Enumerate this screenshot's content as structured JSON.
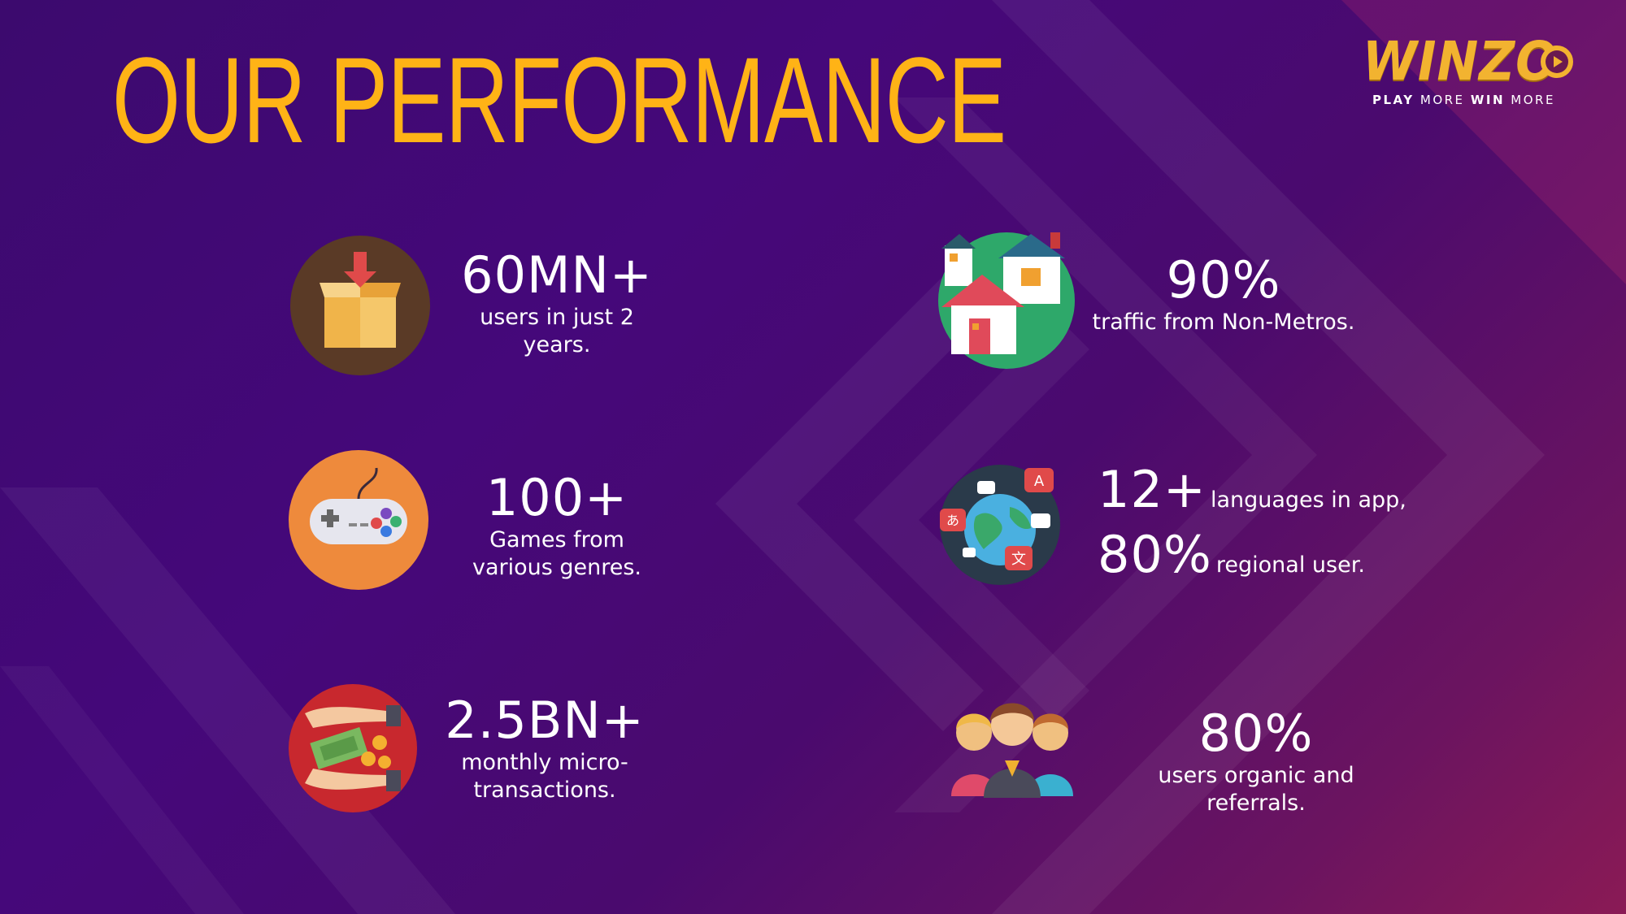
{
  "title": "OUR PERFORMANCE",
  "logo": {
    "name": "WINZO",
    "tagline_parts": [
      "PLAY",
      "MORE",
      "WIN",
      "MORE"
    ]
  },
  "colors": {
    "title": "#ffb316",
    "background": "#45087a",
    "accent": "#f2b330"
  },
  "stats": [
    {
      "value": "60MN+",
      "description": "users in just 2 years.",
      "icon": "download-box-icon"
    },
    {
      "value": "100+",
      "description": "Games from various genres.",
      "icon": "game-controller-icon"
    },
    {
      "value": "2.5BN+",
      "description": "monthly micro-transactions.",
      "icon": "money-hands-icon"
    },
    {
      "value": "90%",
      "description": "traffic from Non-Metros.",
      "icon": "houses-icon"
    },
    {
      "value_a": "12+",
      "description_a": "languages in app,",
      "value_b": "80%",
      "description_b": "regional user.",
      "icon": "globe-languages-icon"
    },
    {
      "value": "80%",
      "description": "users organic and referrals.",
      "icon": "people-group-icon"
    }
  ]
}
